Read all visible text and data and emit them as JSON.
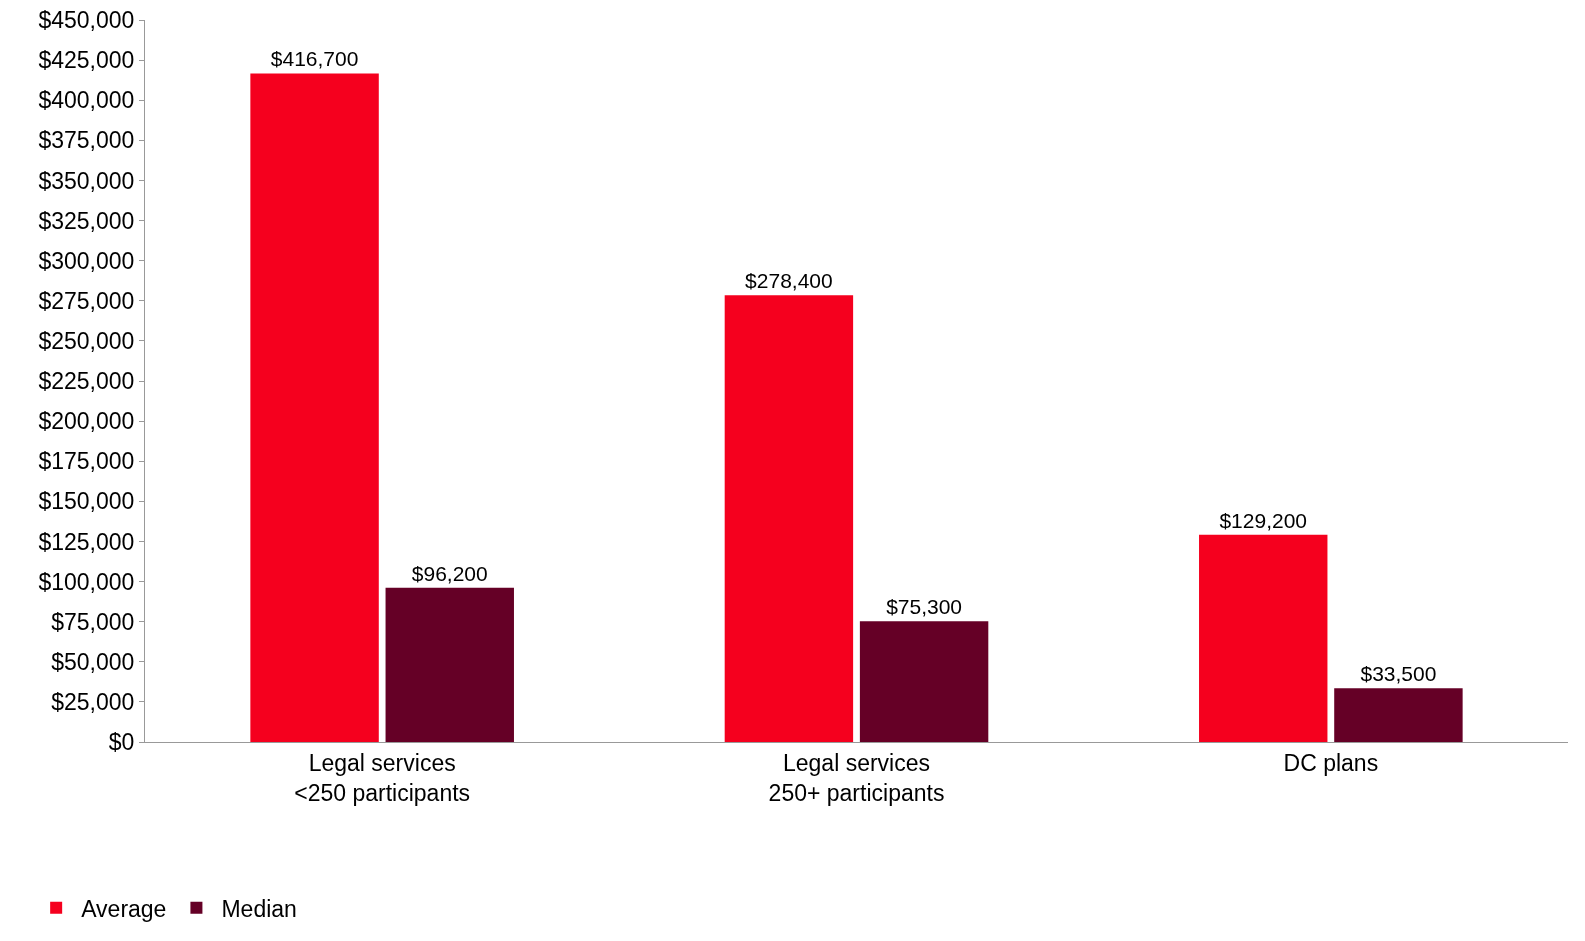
{
  "chart_data": {
    "type": "bar",
    "categories": [
      "Legal services\n<250 participants",
      "Legal services\n250+ participants",
      "DC plans"
    ],
    "series": [
      {
        "name": "Average",
        "color": "#f5001e",
        "values": [
          416700,
          278400,
          129200
        ],
        "value_labels": [
          "$416,700",
          "$278,400",
          "$129,200"
        ]
      },
      {
        "name": "Median",
        "color": "#650026",
        "values": [
          96200,
          75300,
          33500
        ],
        "value_labels": [
          "$96,200",
          "$75,300",
          "$33,500"
        ]
      }
    ],
    "ylim": [
      0,
      450000
    ],
    "yticks": [
      {
        "value": 0,
        "label": "$0"
      },
      {
        "value": 25000,
        "label": "$25,000"
      },
      {
        "value": 50000,
        "label": "$50,000"
      },
      {
        "value": 75000,
        "label": "$75,000"
      },
      {
        "value": 100000,
        "label": "$100,000"
      },
      {
        "value": 125000,
        "label": "$125,000"
      },
      {
        "value": 150000,
        "label": "$150,000"
      },
      {
        "value": 175000,
        "label": "$175,000"
      },
      {
        "value": 200000,
        "label": "$200,000"
      },
      {
        "value": 225000,
        "label": "$225,000"
      },
      {
        "value": 250000,
        "label": "$250,000"
      },
      {
        "value": 275000,
        "label": "$275,000"
      },
      {
        "value": 300000,
        "label": "$300,000"
      },
      {
        "value": 325000,
        "label": "$325,000"
      },
      {
        "value": 350000,
        "label": "$350,000"
      },
      {
        "value": 375000,
        "label": "$375,000"
      },
      {
        "value": 400000,
        "label": "$400,000"
      },
      {
        "value": 425000,
        "label": "$425,000"
      },
      {
        "value": 450000,
        "label": "$450,000"
      }
    ],
    "grid": false,
    "legend": "bottom left"
  }
}
